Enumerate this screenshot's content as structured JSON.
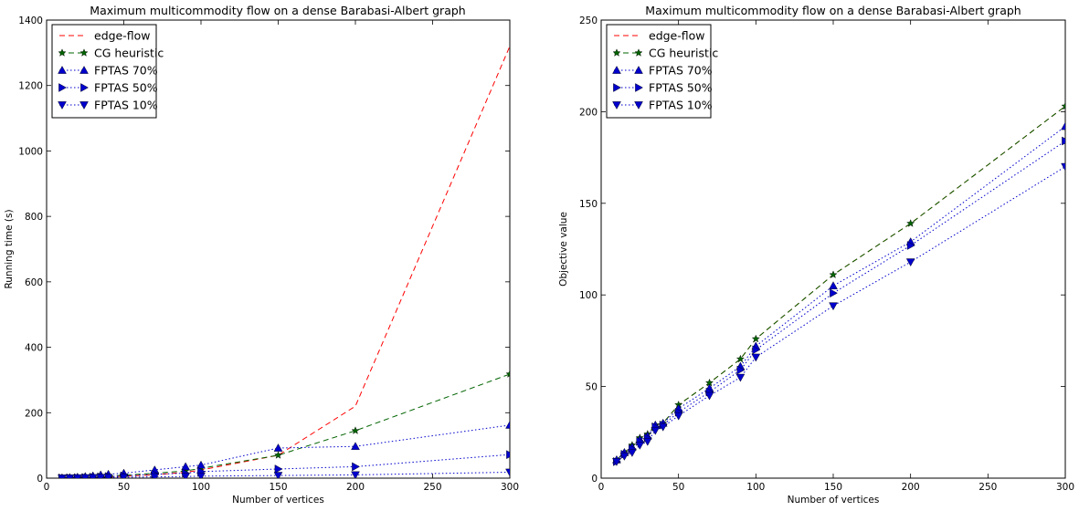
{
  "chart_data": [
    {
      "type": "line",
      "title": "Maximum multicommodity flow on a dense Barabasi-Albert graph",
      "xlabel": "Number of vertices",
      "ylabel": "Running time (s)",
      "xlim": [
        0,
        300
      ],
      "ylim": [
        0,
        1400
      ],
      "xticks": [
        0,
        50,
        100,
        150,
        200,
        250,
        300
      ],
      "yticks": [
        0,
        200,
        400,
        600,
        800,
        1000,
        1200,
        1400
      ],
      "legend": "top-left",
      "grid": false,
      "series": [
        {
          "name": "edge-flow",
          "color": "#ff0000",
          "dash": "dashed",
          "marker": "none",
          "x": [
            10,
            15,
            20,
            25,
            30,
            35,
            40,
            50,
            70,
            90,
            100,
            150,
            200,
            300
          ],
          "y": [
            0.5,
            0.7,
            1,
            1.5,
            2,
            3,
            4,
            6,
            10,
            18,
            25,
            70,
            220,
            1320
          ]
        },
        {
          "name": "CG heuristic",
          "color": "#006400",
          "dash": "dashed",
          "marker": "star",
          "x": [
            10,
            15,
            20,
            25,
            30,
            35,
            40,
            50,
            70,
            90,
            100,
            150,
            200,
            300
          ],
          "y": [
            1,
            1.5,
            2,
            3,
            4,
            5,
            6,
            9,
            15,
            22,
            30,
            70,
            145,
            318
          ]
        },
        {
          "name": "FPTAS 70%",
          "color": "#0000cc",
          "dash": "dotted",
          "marker": "triangle-up",
          "x": [
            10,
            15,
            20,
            25,
            30,
            35,
            40,
            50,
            70,
            90,
            100,
            150,
            200,
            300
          ],
          "y": [
            1,
            2,
            3,
            5,
            7,
            10,
            12,
            15,
            25,
            35,
            40,
            92,
            97,
            162
          ]
        },
        {
          "name": "FPTAS 50%",
          "color": "#0000cc",
          "dash": "dotted",
          "marker": "triangle-right",
          "x": [
            10,
            15,
            20,
            25,
            30,
            35,
            40,
            50,
            70,
            90,
            100,
            150,
            200,
            300
          ],
          "y": [
            0.5,
            1,
            1.5,
            2,
            3,
            4,
            5,
            7,
            12,
            15,
            20,
            28,
            35,
            72
          ]
        },
        {
          "name": "FPTAS 10%",
          "color": "#0000cc",
          "dash": "dotted",
          "marker": "triangle-down",
          "x": [
            10,
            15,
            20,
            25,
            30,
            35,
            40,
            50,
            70,
            90,
            100,
            150,
            200,
            300
          ],
          "y": [
            0.3,
            0.5,
            0.8,
            1,
            1.5,
            2,
            2,
            3,
            4,
            5,
            6,
            8,
            10,
            18
          ]
        }
      ]
    },
    {
      "type": "line",
      "title": "Maximum multicommodity flow on a dense Barabasi-Albert graph",
      "xlabel": "Number of vertices",
      "ylabel": "Objective value",
      "xlim": [
        0,
        300
      ],
      "ylim": [
        0,
        250
      ],
      "xticks": [
        0,
        50,
        100,
        150,
        200,
        250,
        300
      ],
      "yticks": [
        0,
        50,
        100,
        150,
        200,
        250
      ],
      "legend": "top-left",
      "grid": false,
      "series": [
        {
          "name": "edge-flow",
          "color": "#ff0000",
          "dash": "dashed",
          "marker": "none",
          "x": [
            10,
            15,
            20,
            25,
            30,
            35,
            40,
            50,
            70,
            90,
            100,
            150,
            200,
            300
          ],
          "y": [
            10,
            14,
            18,
            22,
            24,
            29,
            30,
            40,
            52,
            65,
            76,
            111,
            139,
            203
          ]
        },
        {
          "name": "CG heuristic",
          "color": "#006400",
          "dash": "dashed",
          "marker": "star",
          "x": [
            10,
            15,
            20,
            25,
            30,
            35,
            40,
            50,
            70,
            90,
            100,
            150,
            200,
            300
          ],
          "y": [
            10,
            14,
            18,
            22,
            24,
            29,
            30,
            40,
            52,
            65,
            76,
            111,
            139,
            203
          ]
        },
        {
          "name": "FPTAS 70%",
          "color": "#0000cc",
          "dash": "dotted",
          "marker": "triangle-up",
          "x": [
            10,
            15,
            20,
            25,
            30,
            35,
            40,
            50,
            70,
            90,
            100,
            150,
            200,
            300
          ],
          "y": [
            10,
            14,
            17,
            21,
            23,
            29,
            30,
            38,
            49,
            61,
            72,
            105,
            129,
            192
          ]
        },
        {
          "name": "FPTAS 50%",
          "color": "#0000cc",
          "dash": "dotted",
          "marker": "triangle-right",
          "x": [
            10,
            15,
            20,
            25,
            30,
            35,
            40,
            50,
            70,
            90,
            100,
            150,
            200,
            300
          ],
          "y": [
            9,
            13,
            16,
            20,
            22,
            28,
            29,
            36,
            47,
            59,
            70,
            101,
            127,
            184
          ]
        },
        {
          "name": "FPTAS 10%",
          "color": "#0000cc",
          "dash": "dotted",
          "marker": "triangle-down",
          "x": [
            10,
            15,
            20,
            25,
            30,
            35,
            40,
            50,
            70,
            90,
            100,
            150,
            200,
            300
          ],
          "y": [
            9,
            12,
            14,
            18,
            20,
            26,
            28,
            34,
            45,
            55,
            66,
            94,
            118,
            170
          ]
        }
      ]
    }
  ]
}
